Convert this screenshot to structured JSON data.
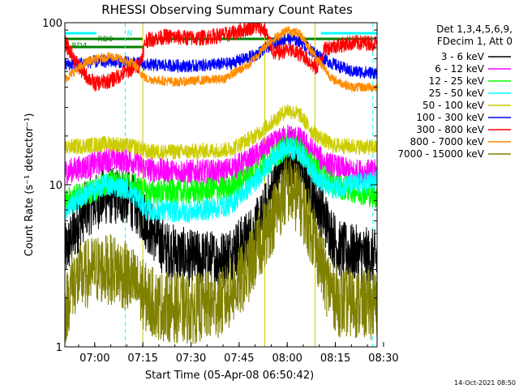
{
  "chart_data": {
    "type": "line",
    "title": "RHESSI Observing Summary Count Rates",
    "ylabel": "Count Rate (s⁻¹ detector⁻¹)",
    "xlabel": "Start Time (05-Apr-08 06:50:42)",
    "yscale": "log",
    "ylim": [
      1,
      100
    ],
    "xlim": [
      "06:50:42",
      "08:28:00"
    ],
    "y_ticks": [
      "1",
      "10",
      "100"
    ],
    "x_ticks": [
      "07:00",
      "07:15",
      "07:30",
      "07:45",
      "08:00",
      "08:15",
      "08:30"
    ],
    "grid": false,
    "legend_position": "right",
    "legend_header": [
      "Det 1,3,4,5,6,9,",
      "FDecim 1, Att 0"
    ],
    "footer_date": "14-Oct-2021 08:50",
    "flag_labels": [
      "N",
      "RD0",
      "RD4"
    ],
    "flags": [
      {
        "label": "N",
        "color": "#00ffff",
        "intervals": [
          [
            "06:50:42",
            "07:00:30"
          ],
          [
            "08:10:30",
            "08:28:00"
          ]
        ]
      },
      {
        "label": "RD0",
        "color": "#008000",
        "intervals": [
          [
            "06:50:42",
            "07:15:00"
          ],
          [
            "07:16:30",
            "08:27:00"
          ]
        ]
      },
      {
        "label": "RD4",
        "color": "#008000",
        "intervals": [
          [
            "06:50:42",
            "07:15:00"
          ]
        ]
      }
    ],
    "solid_vlines": [
      "06:50:42",
      "07:15:00",
      "07:53:00",
      "08:08:40"
    ],
    "dashed_vlines": [
      "07:09:30",
      "08:26:40"
    ],
    "series": [
      {
        "name": "3 - 6 keV",
        "color": "#000000",
        "points": [
          [
            "06:50:42",
            3.8
          ],
          [
            "06:57:00",
            7.0
          ],
          [
            "07:03:00",
            8.5
          ],
          [
            "07:10:00",
            8.5
          ],
          [
            "07:14:00",
            7.0
          ],
          [
            "07:17:00",
            5.5
          ],
          [
            "07:22:00",
            4.0
          ],
          [
            "07:30:00",
            3.5
          ],
          [
            "07:40:00",
            3.5
          ],
          [
            "07:47:00",
            4.5
          ],
          [
            "07:52:00",
            6.0
          ],
          [
            "07:56:00",
            10.0
          ],
          [
            "08:00:00",
            15.0
          ],
          [
            "08:03:00",
            14.0
          ],
          [
            "08:07:00",
            10.0
          ],
          [
            "08:12:00",
            6.0
          ],
          [
            "08:16:00",
            4.0
          ],
          [
            "08:28:00",
            3.5
          ]
        ]
      },
      {
        "name": "6 - 12 keV",
        "color": "#ff00ff",
        "points": [
          [
            "06:50:42",
            12.0
          ],
          [
            "06:58:00",
            13.0
          ],
          [
            "07:05:00",
            14.5
          ],
          [
            "07:12:00",
            14.0
          ],
          [
            "07:16:00",
            12.5
          ],
          [
            "07:25:00",
            12.0
          ],
          [
            "07:40:00",
            12.0
          ],
          [
            "07:48:00",
            14.0
          ],
          [
            "07:54:00",
            17.0
          ],
          [
            "08:00:00",
            20.0
          ],
          [
            "08:04:00",
            19.0
          ],
          [
            "08:08:00",
            16.0
          ],
          [
            "08:12:00",
            13.5
          ],
          [
            "08:20:00",
            12.0
          ],
          [
            "08:28:00",
            12.0
          ]
        ]
      },
      {
        "name": "12 - 25 keV",
        "color": "#00ff00",
        "points": [
          [
            "06:50:42",
            8.0
          ],
          [
            "06:58:00",
            9.0
          ],
          [
            "07:06:00",
            10.5
          ],
          [
            "07:12:00",
            10.0
          ],
          [
            "07:16:00",
            9.0
          ],
          [
            "07:30:00",
            9.0
          ],
          [
            "07:42:00",
            9.5
          ],
          [
            "07:50:00",
            12.0
          ],
          [
            "07:56:00",
            15.0
          ],
          [
            "08:00:00",
            17.5
          ],
          [
            "08:04:00",
            16.5
          ],
          [
            "08:08:00",
            13.0
          ],
          [
            "08:14:00",
            10.0
          ],
          [
            "08:28:00",
            8.5
          ]
        ]
      },
      {
        "name": "25 - 50 keV",
        "color": "#00ffff",
        "points": [
          [
            "06:50:42",
            7.0
          ],
          [
            "06:56:00",
            8.5
          ],
          [
            "07:03:00",
            10.0
          ],
          [
            "07:10:00",
            9.5
          ],
          [
            "07:14:00",
            8.0
          ],
          [
            "07:16:00",
            7.0
          ],
          [
            "07:30:00",
            6.8
          ],
          [
            "07:42:00",
            7.5
          ],
          [
            "07:49:00",
            10.0
          ],
          [
            "07:55:00",
            14.0
          ],
          [
            "08:00:00",
            17.0
          ],
          [
            "08:04:00",
            16.0
          ],
          [
            "08:08:00",
            12.0
          ],
          [
            "08:13:00",
            9.5
          ],
          [
            "08:20:00",
            10.0
          ],
          [
            "08:28:00",
            10.5
          ]
        ]
      },
      {
        "name": "50 - 100 keV",
        "color": "#cccc00",
        "points": [
          [
            "06:50:42",
            17.0
          ],
          [
            "06:58:00",
            17.5
          ],
          [
            "07:05:00",
            18.0
          ],
          [
            "07:14:00",
            17.0
          ],
          [
            "07:16:00",
            16.0
          ],
          [
            "07:30:00",
            16.0
          ],
          [
            "07:42:00",
            16.5
          ],
          [
            "07:50:00",
            20.0
          ],
          [
            "07:56:00",
            25.0
          ],
          [
            "08:00:00",
            29.0
          ],
          [
            "08:04:00",
            27.0
          ],
          [
            "08:08:00",
            21.0
          ],
          [
            "08:14:00",
            17.5
          ],
          [
            "08:28:00",
            17.0
          ]
        ]
      },
      {
        "name": "100 - 300 keV",
        "color": "#0000ff",
        "points": [
          [
            "06:50:42",
            55.0
          ],
          [
            "06:58:00",
            57.0
          ],
          [
            "07:05:00",
            58.0
          ],
          [
            "07:14:00",
            56.0
          ],
          [
            "07:16:00",
            55.0
          ],
          [
            "07:30:00",
            54.0
          ],
          [
            "07:42:00",
            56.0
          ],
          [
            "07:50:00",
            63.0
          ],
          [
            "07:56:00",
            75.0
          ],
          [
            "08:00:00",
            80.0
          ],
          [
            "08:04:00",
            77.0
          ],
          [
            "08:08:00",
            66.0
          ],
          [
            "08:14:00",
            56.0
          ],
          [
            "08:20:00",
            50.0
          ],
          [
            "08:28:00",
            49.0
          ]
        ]
      },
      {
        "name": "300 - 800 keV",
        "color": "#ff0000",
        "points": [
          [
            "06:50:42",
            75.0
          ],
          [
            "06:56:00",
            50.0
          ],
          [
            "07:00:00",
            42.0
          ],
          [
            "07:05:00",
            44.0
          ],
          [
            "07:10:00",
            50.0
          ],
          [
            "07:14:00",
            55.0
          ],
          [
            "07:16:00",
            78.0
          ],
          [
            "07:22:00",
            82.0
          ],
          [
            "07:32:00",
            80.0
          ],
          [
            "07:42:00",
            85.0
          ],
          [
            "07:50:00",
            95.0
          ],
          [
            "07:53:00",
            90.0
          ],
          [
            "07:56:00",
            64.0
          ],
          [
            "08:00:00",
            68.0
          ],
          [
            "08:05:00",
            63.0
          ],
          [
            "08:09:00",
            52.0
          ],
          [
            "08:12:00",
            70.0
          ],
          [
            "08:20:00",
            75.0
          ],
          [
            "08:28:00",
            75.0
          ]
        ]
      },
      {
        "name": "800 - 7000 keV",
        "color": "#ff8c00",
        "points": [
          [
            "06:50:42",
            45.0
          ],
          [
            "06:58:00",
            58.0
          ],
          [
            "07:05:00",
            62.0
          ],
          [
            "07:12:00",
            56.0
          ],
          [
            "07:16:00",
            45.0
          ],
          [
            "07:25:00",
            43.0
          ],
          [
            "07:40:00",
            45.0
          ],
          [
            "07:48:00",
            55.0
          ],
          [
            "07:54:00",
            75.0
          ],
          [
            "08:00:00",
            90.0
          ],
          [
            "08:04:00",
            85.0
          ],
          [
            "08:08:00",
            65.0
          ],
          [
            "08:14:00",
            45.0
          ],
          [
            "08:20:00",
            40.0
          ],
          [
            "08:28:00",
            40.0
          ]
        ]
      },
      {
        "name": "7000 - 15000 keV",
        "color": "#808000",
        "points": [
          [
            "06:50:42",
            1.6
          ],
          [
            "06:53:00",
            2.5
          ],
          [
            "07:00:00",
            3.0
          ],
          [
            "07:07:00",
            3.0
          ],
          [
            "07:12:00",
            2.5
          ],
          [
            "07:16:00",
            2.0
          ],
          [
            "07:20:00",
            1.8
          ],
          [
            "07:30:00",
            1.7
          ],
          [
            "07:40:00",
            1.9
          ],
          [
            "07:47:00",
            2.8
          ],
          [
            "07:53:00",
            5.0
          ],
          [
            "08:00:00",
            9.5
          ],
          [
            "08:04:00",
            8.0
          ],
          [
            "08:08:00",
            5.0
          ],
          [
            "08:12:00",
            2.6
          ],
          [
            "08:16:00",
            1.9
          ],
          [
            "08:28:00",
            1.8
          ]
        ]
      }
    ]
  }
}
